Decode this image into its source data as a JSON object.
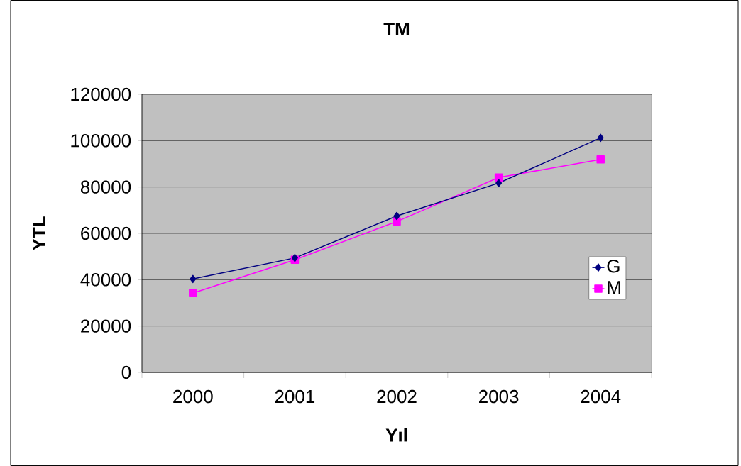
{
  "chart_data": {
    "type": "line",
    "title": "TM",
    "xlabel": "Yıl",
    "ylabel": "YTL",
    "categories": [
      "2000",
      "2001",
      "2002",
      "2003",
      "2004"
    ],
    "series": [
      {
        "name": "G",
        "color": "#000080",
        "marker": "diamond",
        "values": [
          40300,
          49400,
          67500,
          81700,
          101200
        ]
      },
      {
        "name": "M",
        "color": "#ff00ff",
        "marker": "square",
        "values": [
          34200,
          48600,
          65100,
          84100,
          91900
        ]
      }
    ],
    "ylim": [
      0,
      120000
    ],
    "yticks": [
      0,
      20000,
      40000,
      60000,
      80000,
      100000,
      120000
    ],
    "grid": "y",
    "legend": "right",
    "line_style": "solid"
  }
}
